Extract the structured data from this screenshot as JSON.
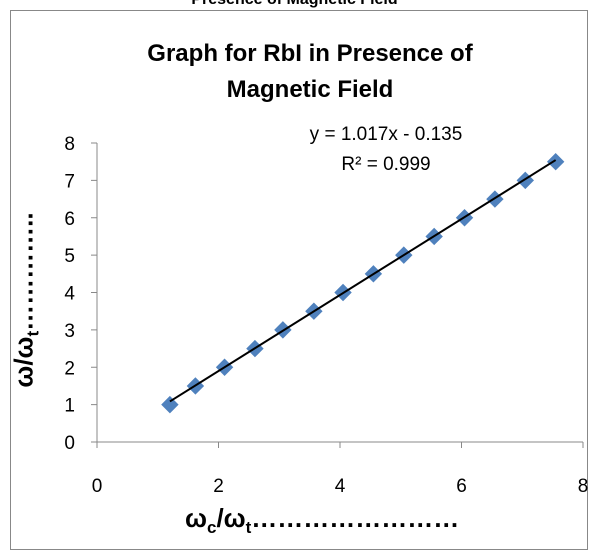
{
  "header_cut_text": "Presence of Magnetic Field",
  "chart_data": {
    "type": "scatter",
    "title_lines": [
      "Graph for RbI in Presence of",
      "Magnetic Field"
    ],
    "xlabel": {
      "main": "ω",
      "sub": "c",
      "mid": "/ω",
      "sub2": "t",
      "tail": "……………………"
    },
    "ylabel": {
      "main": "ω/ω",
      "sub": "t",
      "tail": "………….."
    },
    "xlim": [
      0,
      8
    ],
    "ylim": [
      0,
      8
    ],
    "xticks": [
      "0",
      "2",
      "4",
      "6",
      "8"
    ],
    "yticks": [
      "0",
      "1",
      "2",
      "3",
      "4",
      "5",
      "6",
      "7",
      "8"
    ],
    "series": [
      {
        "marker": "diamond",
        "color": "#4f81bd",
        "x": [
          1.2,
          1.62,
          2.1,
          2.6,
          3.06,
          3.57,
          4.05,
          4.55,
          5.05,
          5.55,
          6.05,
          6.55,
          7.05,
          7.55
        ],
        "y": [
          1.0,
          1.5,
          2.0,
          2.5,
          3.0,
          3.5,
          4.0,
          4.5,
          5.0,
          5.5,
          6.0,
          6.5,
          7.0,
          7.5
        ]
      }
    ],
    "trendline": {
      "slope": 1.017,
      "intercept": -0.135,
      "color": "#000000",
      "x_range": [
        1.2,
        7.55
      ]
    },
    "equation_text": "y = 1.017x - 0.135",
    "r2_text": "R² = 0.999",
    "grid": false,
    "legend": "none"
  }
}
